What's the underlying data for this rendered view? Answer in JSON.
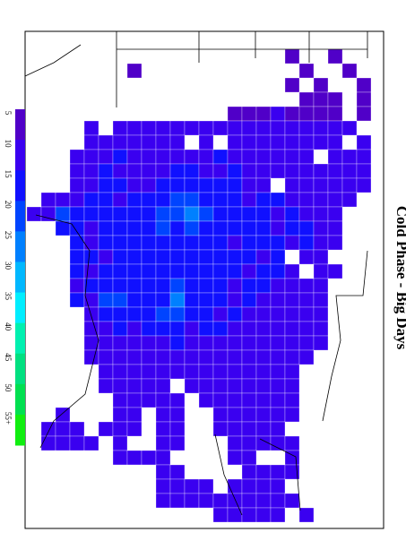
{
  "title": "Cold Phase - Big Days",
  "legend": {
    "labels": [
      "5",
      "10",
      "15",
      "20",
      "25",
      "30",
      "35",
      "40",
      "45",
      "50",
      "55+"
    ],
    "colors": [
      "#5000c8",
      "#3a00f0",
      "#1010ff",
      "#0044ff",
      "#0080ff",
      "#00b8ff",
      "#00eeff",
      "#00f0b0",
      "#00e080",
      "#00e050",
      "#10ee10"
    ]
  },
  "grid": {
    "rows": [
      [
        null,
        null,
        null,
        null,
        null,
        null,
        null,
        null,
        null,
        null,
        null,
        null,
        null,
        null,
        null,
        null,
        null,
        null,
        8,
        null,
        null,
        8,
        null,
        null
      ],
      [
        null,
        null,
        null,
        null,
        null,
        null,
        null,
        8,
        null,
        null,
        null,
        null,
        null,
        null,
        null,
        null,
        null,
        null,
        null,
        8,
        null,
        null,
        8,
        null
      ],
      [
        null,
        null,
        null,
        null,
        null,
        null,
        null,
        null,
        null,
        null,
        null,
        null,
        null,
        null,
        null,
        null,
        null,
        null,
        8,
        null,
        8,
        null,
        null,
        8
      ],
      [
        null,
        null,
        null,
        null,
        null,
        null,
        null,
        null,
        null,
        null,
        null,
        null,
        null,
        null,
        null,
        null,
        null,
        null,
        null,
        8,
        8,
        8,
        null,
        8
      ],
      [
        null,
        null,
        null,
        null,
        null,
        null,
        null,
        null,
        null,
        null,
        null,
        null,
        null,
        null,
        9,
        9,
        9,
        10,
        8,
        9,
        9,
        9,
        null,
        8
      ],
      [
        null,
        null,
        null,
        null,
        10,
        null,
        12,
        12,
        12,
        10,
        11,
        12,
        10,
        12,
        12,
        12,
        10,
        12,
        11,
        12,
        11,
        10,
        12,
        null
      ],
      [
        null,
        null,
        null,
        null,
        12,
        13,
        12,
        12,
        12,
        14,
        10,
        null,
        13,
        null,
        12,
        13,
        12,
        14,
        13,
        12,
        13,
        12,
        null,
        12
      ],
      [
        null,
        null,
        null,
        11,
        12,
        14,
        15,
        13,
        12,
        13,
        12,
        14,
        12,
        15,
        14,
        13,
        12,
        12,
        11,
        13,
        null,
        12,
        13,
        12
      ],
      [
        null,
        null,
        null,
        12,
        13,
        16,
        14,
        12,
        13,
        14,
        16,
        15,
        13,
        14,
        15,
        14,
        13,
        12,
        12,
        14,
        13,
        12,
        12,
        14
      ],
      [
        null,
        null,
        null,
        12,
        14,
        15,
        16,
        14,
        13,
        18,
        16,
        15,
        16,
        18,
        16,
        14,
        13,
        null,
        12,
        13,
        12,
        14,
        12,
        13
      ],
      [
        null,
        12,
        12,
        14,
        15,
        16,
        14,
        15,
        17,
        16,
        20,
        22,
        18,
        16,
        15,
        14,
        17,
        15,
        12,
        13,
        14,
        12,
        13,
        null
      ],
      [
        10,
        12,
        20,
        18,
        15,
        16,
        17,
        15,
        18,
        20,
        22,
        28,
        20,
        18,
        16,
        15,
        17,
        14,
        16,
        12,
        13,
        12,
        null,
        null
      ],
      [
        null,
        null,
        18,
        16,
        14,
        17,
        15,
        16,
        18,
        20,
        16,
        22,
        18,
        16,
        15,
        17,
        16,
        14,
        18,
        15,
        12,
        13,
        null,
        null
      ],
      [
        null,
        null,
        null,
        15,
        14,
        16,
        18,
        15,
        17,
        16,
        18,
        17,
        16,
        15,
        14,
        16,
        18,
        15,
        14,
        16,
        12,
        13,
        null,
        null
      ],
      [
        null,
        null,
        null,
        16,
        15,
        14,
        16,
        18,
        16,
        15,
        17,
        16,
        15,
        18,
        16,
        15,
        14,
        16,
        null,
        13,
        12,
        null,
        null,
        null
      ],
      [
        null,
        null,
        null,
        15,
        14,
        16,
        15,
        17,
        16,
        18,
        16,
        15,
        17,
        16,
        15,
        14,
        16,
        15,
        13,
        null,
        12,
        13,
        null,
        null
      ],
      [
        null,
        null,
        null,
        14,
        16,
        15,
        18,
        17,
        15,
        16,
        20,
        16,
        15,
        17,
        14,
        16,
        15,
        13,
        14,
        12,
        13,
        null,
        null,
        null
      ],
      [
        null,
        null,
        null,
        15,
        14,
        22,
        20,
        18,
        15,
        16,
        25,
        18,
        16,
        15,
        14,
        16,
        13,
        14,
        12,
        13,
        12,
        null,
        null,
        null
      ],
      [
        null,
        null,
        null,
        null,
        13,
        16,
        15,
        18,
        16,
        20,
        22,
        18,
        15,
        14,
        16,
        13,
        12,
        14,
        13,
        12,
        11,
        null,
        null,
        null
      ],
      [
        null,
        null,
        null,
        null,
        12,
        14,
        15,
        13,
        16,
        15,
        17,
        14,
        16,
        15,
        13,
        12,
        14,
        12,
        13,
        12,
        10,
        null,
        null,
        null
      ],
      [
        null,
        null,
        null,
        null,
        12,
        13,
        14,
        12,
        14,
        13,
        15,
        13,
        14,
        12,
        13,
        14,
        12,
        13,
        12,
        11,
        12,
        null,
        null,
        null
      ],
      [
        null,
        null,
        null,
        null,
        12,
        13,
        12,
        14,
        13,
        12,
        14,
        13,
        12,
        13,
        12,
        14,
        12,
        11,
        12,
        10,
        null,
        null,
        null,
        null
      ],
      [
        null,
        null,
        null,
        null,
        null,
        12,
        13,
        12,
        14,
        13,
        12,
        13,
        14,
        12,
        13,
        12,
        13,
        12,
        11,
        null,
        null,
        null,
        null,
        null
      ],
      [
        null,
        null,
        null,
        null,
        null,
        12,
        13,
        14,
        12,
        13,
        null,
        12,
        13,
        12,
        14,
        12,
        12,
        13,
        11,
        null,
        null,
        null,
        null,
        null
      ],
      [
        null,
        null,
        null,
        null,
        null,
        null,
        12,
        13,
        12,
        14,
        12,
        null,
        13,
        12,
        14,
        13,
        12,
        13,
        12,
        null,
        null,
        null,
        null,
        null
      ],
      [
        null,
        null,
        10,
        null,
        null,
        null,
        12,
        12,
        null,
        13,
        12,
        null,
        null,
        12,
        13,
        14,
        12,
        12,
        11,
        null,
        null,
        null,
        null,
        null
      ],
      [
        null,
        10,
        11,
        10,
        null,
        10,
        11,
        12,
        null,
        12,
        13,
        null,
        null,
        12,
        13,
        12,
        13,
        12,
        null,
        null,
        null,
        null,
        null,
        null
      ],
      [
        null,
        10,
        10,
        11,
        11,
        null,
        10,
        null,
        null,
        12,
        12,
        null,
        null,
        null,
        12,
        13,
        12,
        11,
        10,
        null,
        null,
        null,
        null,
        null
      ],
      [
        null,
        null,
        null,
        null,
        null,
        null,
        10,
        11,
        12,
        12,
        null,
        null,
        null,
        null,
        12,
        13,
        null,
        null,
        11,
        null,
        null,
        null,
        null,
        null
      ],
      [
        null,
        null,
        null,
        null,
        null,
        null,
        null,
        null,
        null,
        11,
        12,
        null,
        null,
        null,
        null,
        12,
        12,
        12,
        11,
        null,
        null,
        null,
        null,
        null
      ],
      [
        null,
        null,
        null,
        null,
        null,
        null,
        null,
        null,
        null,
        11,
        12,
        10,
        12,
        null,
        12,
        12,
        12,
        12,
        null,
        null,
        null,
        null,
        null,
        null
      ],
      [
        null,
        null,
        null,
        null,
        null,
        null,
        null,
        null,
        null,
        10,
        11,
        11,
        12,
        12,
        12,
        12,
        11,
        11,
        10,
        null,
        null,
        null,
        null,
        null
      ],
      [
        null,
        null,
        null,
        null,
        null,
        null,
        null,
        null,
        null,
        null,
        null,
        null,
        null,
        10,
        11,
        12,
        10,
        11,
        null,
        10,
        null,
        null,
        null,
        null
      ]
    ]
  }
}
